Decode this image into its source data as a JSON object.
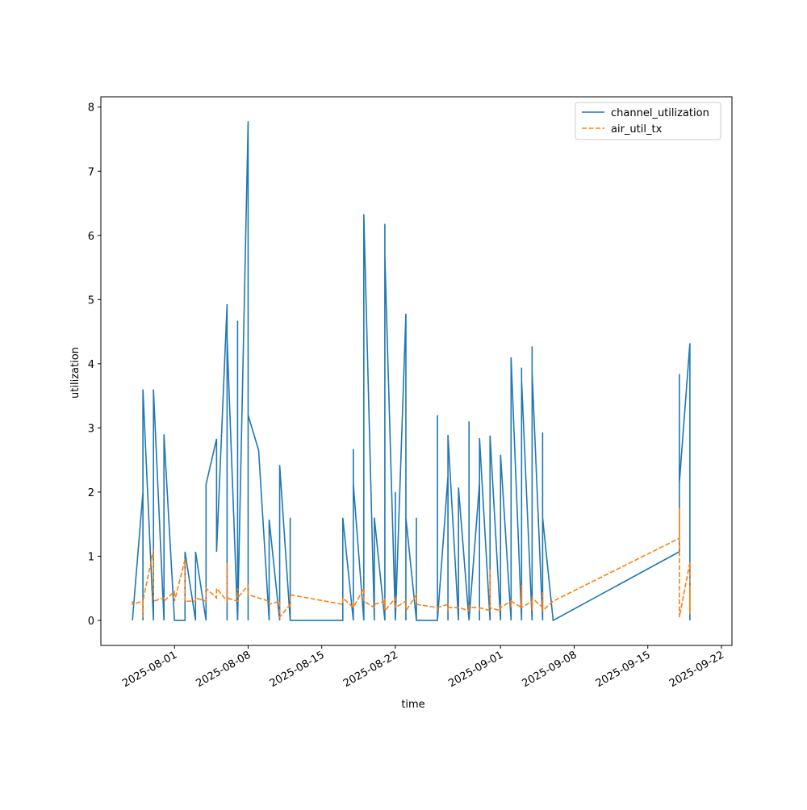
{
  "chart_data": {
    "type": "line",
    "x_label": "time",
    "y_label": "utilization",
    "x": [
      "2025-07-28",
      "2025-07-28",
      "2025-07-29",
      "2025-07-29",
      "2025-07-29",
      "2025-07-30",
      "2025-07-30",
      "2025-07-30",
      "2025-07-31",
      "2025-07-31",
      "2025-08-01",
      "2025-08-01",
      "2025-08-02",
      "2025-08-02",
      "2025-08-03",
      "2025-08-03",
      "2025-08-04",
      "2025-08-04",
      "2025-08-05",
      "2025-08-05",
      "2025-08-06",
      "2025-08-06",
      "2025-08-06",
      "2025-08-07",
      "2025-08-07",
      "2025-08-07",
      "2025-08-08",
      "2025-08-08",
      "2025-08-08",
      "2025-08-09",
      "2025-08-10",
      "2025-08-10",
      "2025-08-11",
      "2025-08-11",
      "2025-08-12",
      "2025-08-12",
      "2025-08-12",
      "2025-08-17",
      "2025-08-17",
      "2025-08-18",
      "2025-08-18",
      "2025-08-18",
      "2025-08-18",
      "2025-08-19",
      "2025-08-19",
      "2025-08-20",
      "2025-08-20",
      "2025-08-21",
      "2025-08-21",
      "2025-08-21",
      "2025-08-21",
      "2025-08-21",
      "2025-08-22",
      "2025-08-22",
      "2025-08-22",
      "2025-08-23",
      "2025-08-23",
      "2025-08-23",
      "2025-08-24",
      "2025-08-24",
      "2025-08-24",
      "2025-08-26",
      "2025-08-26",
      "2025-08-26",
      "2025-08-27",
      "2025-08-27",
      "2025-08-27",
      "2025-08-28",
      "2025-08-28",
      "2025-08-29",
      "2025-08-29",
      "2025-08-29",
      "2025-08-30",
      "2025-08-30",
      "2025-08-30",
      "2025-08-31",
      "2025-08-31",
      "2025-08-31",
      "2025-09-01",
      "2025-09-01",
      "2025-09-01",
      "2025-09-01",
      "2025-09-02",
      "2025-09-02",
      "2025-09-02",
      "2025-09-02",
      "2025-09-03",
      "2025-09-03",
      "2025-09-03",
      "2025-09-03",
      "2025-09-04",
      "2025-09-04",
      "2025-09-04",
      "2025-09-05",
      "2025-09-05",
      "2025-09-05",
      "2025-09-05",
      "2025-09-05",
      "2025-09-06",
      "2025-09-18",
      "2025-09-18",
      "2025-09-18",
      "2025-09-19",
      "2025-09-19",
      "2025-09-19"
    ],
    "series": [
      {
        "name": "channel_utilization",
        "color": "#1f77b4",
        "dash": false,
        "values": [
          0,
          0,
          2.0,
          0,
          3.6,
          0,
          1.6,
          3.6,
          0,
          2.9,
          0,
          0,
          0,
          1.07,
          0,
          1.07,
          0,
          2.12,
          2.83,
          1.07,
          4.93,
          0,
          4.4,
          0,
          4.67,
          0,
          7.78,
          0,
          3.2,
          2.65,
          0,
          1.57,
          0,
          2.42,
          0,
          1.6,
          0,
          0,
          1.6,
          0,
          2.67,
          0,
          2.13,
          0,
          6.33,
          0,
          1.6,
          0,
          2.85,
          0,
          6.18,
          5.68,
          0,
          2.0,
          0,
          4.78,
          0,
          1.6,
          0,
          1.6,
          0,
          0,
          3.2,
          0,
          2.25,
          0,
          2.89,
          0,
          2.07,
          0,
          3.1,
          0,
          2.14,
          0,
          2.84,
          0,
          1.07,
          2.88,
          0,
          1.95,
          0,
          2.58,
          0,
          3.2,
          0,
          4.1,
          0,
          3.94,
          0,
          3.74,
          0,
          4.27,
          3.87,
          0,
          2.93,
          0,
          1.9,
          1.6,
          0,
          1.07,
          3.84,
          2.14,
          4.32,
          0,
          2.14
        ]
      },
      {
        "name": "air_util_tx",
        "color": "#ff7f0e",
        "dash": true,
        "values": [
          0.3,
          0.25,
          0.3,
          0.05,
          0.3,
          1.1,
          0.3,
          0.3,
          0.35,
          0.3,
          0.45,
          0.3,
          0.95,
          0.3,
          0.3,
          0.35,
          0.3,
          0.5,
          0.35,
          0.5,
          0.3,
          0.9,
          0.35,
          0.3,
          0.5,
          0.35,
          0.55,
          0.45,
          0.4,
          0.35,
          0.3,
          0.25,
          0.3,
          0.05,
          0.25,
          0.2,
          0.4,
          0.25,
          0.35,
          0.2,
          0.3,
          0.25,
          0.2,
          0.5,
          0.3,
          0.2,
          0.25,
          0.3,
          0.2,
          0.35,
          0.3,
          0.15,
          0.35,
          0.3,
          0.2,
          0.3,
          0.2,
          0.15,
          0.4,
          0.3,
          0.25,
          0.2,
          0.15,
          0.2,
          0.25,
          0.15,
          0.2,
          0.2,
          0.2,
          0.15,
          0.25,
          0.2,
          0.2,
          0.15,
          0.2,
          0.15,
          0.8,
          0.2,
          0.15,
          0.2,
          0.25,
          0.2,
          0.3,
          0.2,
          0.25,
          0.3,
          0.2,
          0.55,
          0.25,
          0.2,
          0.3,
          0.15,
          0.35,
          0.2,
          0.45,
          0.2,
          0.25,
          0.15,
          0.3,
          1.28,
          1.75,
          0.05,
          0.9,
          0.1,
          0.5
        ]
      }
    ],
    "xlim": [
      "2025-07-25",
      "2025-09-23"
    ],
    "xticks": [
      "2025-08-01",
      "2025-08-08",
      "2025-08-15",
      "2025-08-22",
      "2025-09-01",
      "2025-09-08",
      "2025-09-15",
      "2025-09-22"
    ],
    "ylim": [
      -0.39,
      8.16
    ],
    "yticks": [
      0,
      1,
      2,
      3,
      4,
      5,
      6,
      7,
      8
    ],
    "legend": "upper right"
  }
}
